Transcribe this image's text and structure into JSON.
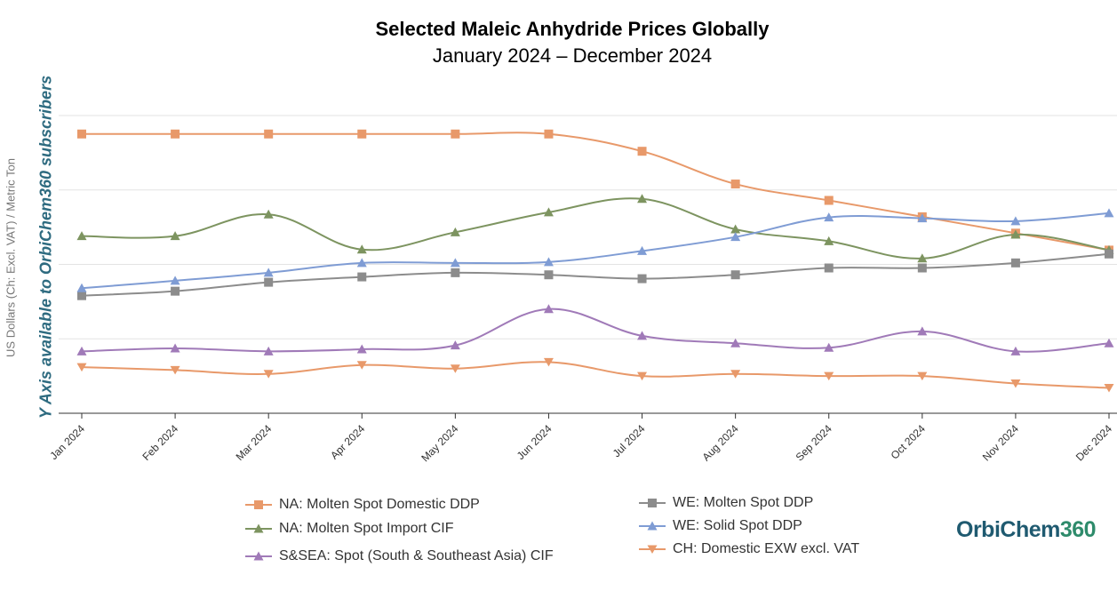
{
  "chart_data": {
    "type": "line",
    "title": "Selected Maleic Anhydride Prices Globally",
    "subtitle": "January 2024 – December 2024",
    "ylabel": "US Dollars (Ch: Excl. VAT) / Metric Ton",
    "y_axis_note": "Y Axis available to OrbiChem360 subscribers",
    "xlabel": "",
    "categories": [
      "Jan 2024",
      "Feb 2024",
      "Mar 2024",
      "Apr 2024",
      "May 2024",
      "Jun 2024",
      "Jul 2024",
      "Aug 2024",
      "Sep 2024",
      "Oct 2024",
      "Nov 2024",
      "Dec 2024"
    ],
    "ylim": [
      0,
      100
    ],
    "grid": "horizontal",
    "legend_position": "bottom",
    "series": [
      {
        "name": "NA: Molten Spot Domestic DDP",
        "color": "#E8996A",
        "marker": "square",
        "values": [
          93.8,
          93.8,
          93.8,
          93.8,
          93.8,
          93.8,
          88.0,
          77.0,
          71.5,
          66.0,
          60.5,
          54.8
        ]
      },
      {
        "name": "NA: Molten Spot Import CIF",
        "color": "#7D9460",
        "marker": "triangle-up",
        "values": [
          59.5,
          59.5,
          66.8,
          55.0,
          60.8,
          67.5,
          72.0,
          61.8,
          57.8,
          52.0,
          60.0,
          54.8
        ]
      },
      {
        "name": "S&SEA: Spot (South & Southeast Asia) CIF",
        "color": "#A07AB8",
        "marker": "triangle-up",
        "values": [
          20.8,
          21.8,
          20.8,
          21.5,
          22.8,
          35.0,
          26.0,
          23.5,
          22.0,
          27.5,
          20.8,
          23.5
        ]
      },
      {
        "name": "WE: Molten Spot DDP",
        "color": "#8C8C8C",
        "marker": "square",
        "values": [
          39.5,
          41.0,
          44.0,
          45.8,
          47.2,
          46.5,
          45.2,
          46.5,
          48.8,
          48.8,
          50.5,
          53.5
        ]
      },
      {
        "name": "WE: Solid Spot DDP",
        "color": "#7F9CD4",
        "marker": "triangle-up",
        "values": [
          42.0,
          44.5,
          47.2,
          50.5,
          50.5,
          50.8,
          54.5,
          59.2,
          65.8,
          65.5,
          64.5,
          67.2
        ]
      },
      {
        "name": "CH: Domestic EXW excl. VAT",
        "color": "#E8996A",
        "marker": "triangle-down",
        "values": [
          15.5,
          14.5,
          13.2,
          16.2,
          15.0,
          17.2,
          12.5,
          13.2,
          12.5,
          12.5,
          10.0,
          8.5
        ]
      }
    ]
  },
  "logo": {
    "part1": "OrbiChem",
    "part2": "360"
  }
}
